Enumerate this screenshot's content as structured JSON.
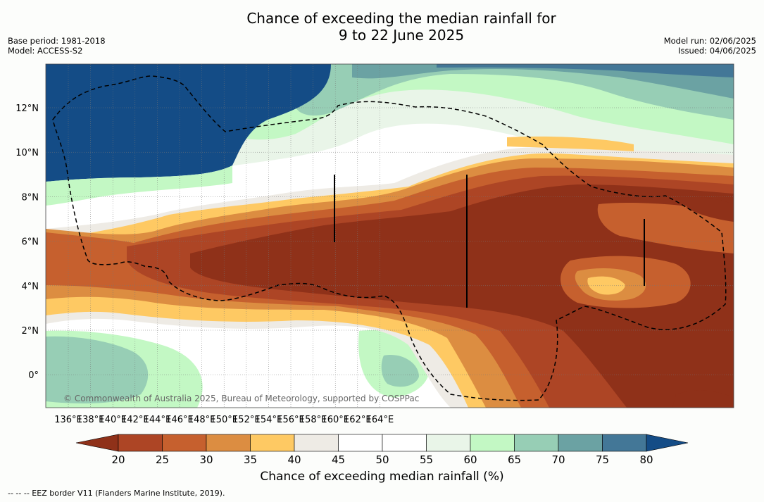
{
  "title_line1": "Chance of exceeding the median rainfall for",
  "title_line2": "9 to 22 June 2025",
  "base_period": "Base period: 1981-2018",
  "model": "Model: ACCESS-S2",
  "model_run": "Model run: 02/06/2025",
  "issued": "Issued: 04/06/2025",
  "copyright": "© Commonwealth of Australia 2025, Bureau of Meteorology, supported by COSPPac",
  "lon_labels": [
    "136°E",
    "138°E",
    "140°E",
    "142°E",
    "144°E",
    "146°E",
    "148°E",
    "150°E",
    "152°E",
    "154°E",
    "156°E",
    "158°E",
    "160°E",
    "162°E",
    "164°E"
  ],
  "lat_labels": [
    "12°N",
    "10°N",
    "8°N",
    "6°N",
    "4°N",
    "2°N",
    "0°"
  ],
  "colorbar": {
    "ticks": [
      "20",
      "25",
      "30",
      "35",
      "40",
      "45",
      "50",
      "55",
      "60",
      "65",
      "70",
      "75",
      "80"
    ],
    "colors": [
      "#8f3119",
      "#ad4525",
      "#c6602e",
      "#dc8d41",
      "#fec963",
      "#eeebe5",
      "#ffffff",
      "#ffffff",
      "#e9f5e8",
      "#c3f8c4",
      "#97ceb5",
      "#6ba2a3",
      "#437797",
      "#144c86"
    ],
    "label": "Chance of exceeding median rainfall (%)"
  },
  "footnote": "--  --  -- EEZ border V11 (Flanders Marine Institute, 2019)."
}
